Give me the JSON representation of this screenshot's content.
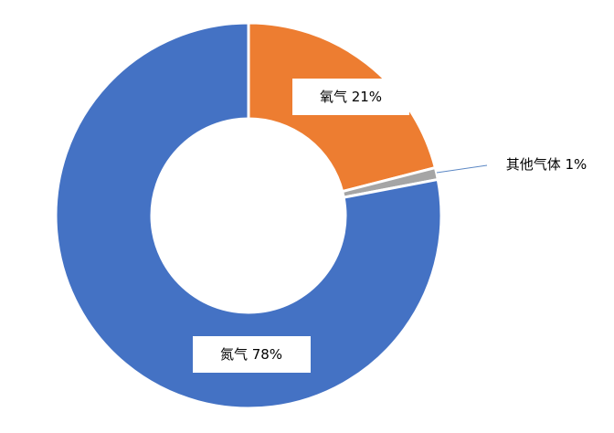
{
  "chart_data": {
    "type": "pie",
    "variant": "donut",
    "slices": [
      {
        "name": "氧气",
        "value": 21,
        "label": "氧气 21%",
        "color": "#ED7D31"
      },
      {
        "name": "其他气体",
        "value": 1,
        "label": "其他气体 1%",
        "color": "#A5A5A5"
      },
      {
        "name": "氮气",
        "value": 78,
        "label": "氮气 78%",
        "color": "#4472C4"
      }
    ],
    "legend": "none"
  }
}
